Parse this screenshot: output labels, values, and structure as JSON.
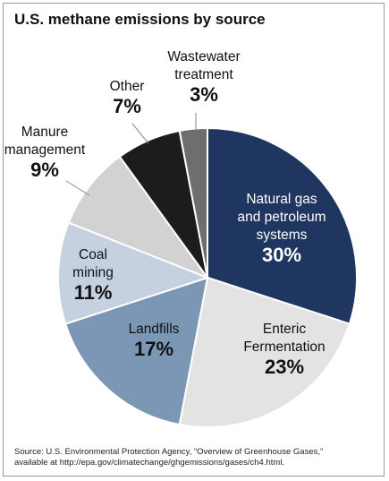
{
  "chart_data": {
    "type": "pie",
    "title": "U.S. methane emissions by source",
    "unit": "%",
    "slices": [
      {
        "label_lines": [
          "Natural gas",
          "and petroleum",
          "systems"
        ],
        "value": 30,
        "value_label": "30%",
        "color": "#1f3660",
        "text_color": "#ffffff"
      },
      {
        "label_lines": [
          "Enteric",
          "Fermentation"
        ],
        "value": 23,
        "value_label": "23%",
        "color": "#e3e3e3",
        "text_color": "#111111"
      },
      {
        "label_lines": [
          "Landfills"
        ],
        "value": 17,
        "value_label": "17%",
        "color": "#7c97b5",
        "text_color": "#111111"
      },
      {
        "label_lines": [
          "Coal",
          "mining"
        ],
        "value": 11,
        "value_label": "11%",
        "color": "#c5d1e0",
        "text_color": "#111111"
      },
      {
        "label_lines": [
          "Manure",
          "management"
        ],
        "value": 9,
        "value_label": "9%",
        "color": "#d2d2d2",
        "text_color": "#111111"
      },
      {
        "label_lines": [
          "Other"
        ],
        "value": 7,
        "value_label": "7%",
        "color": "#1c1c1c",
        "text_color": "#111111"
      },
      {
        "label_lines": [
          "Wastewater",
          "treatment"
        ],
        "value": 3,
        "value_label": "3%",
        "color": "#6e6e6e",
        "text_color": "#111111"
      }
    ],
    "start_angle_deg": 0,
    "direction": "clockwise",
    "legend": "none"
  },
  "source": {
    "line1": "Source: U.S. Environmental Protection Agency, “Overview of Greenhouse Gases,”",
    "line2": "available at http://epa.gov/climatechange/ghgemissions/gases/ch4.html."
  }
}
